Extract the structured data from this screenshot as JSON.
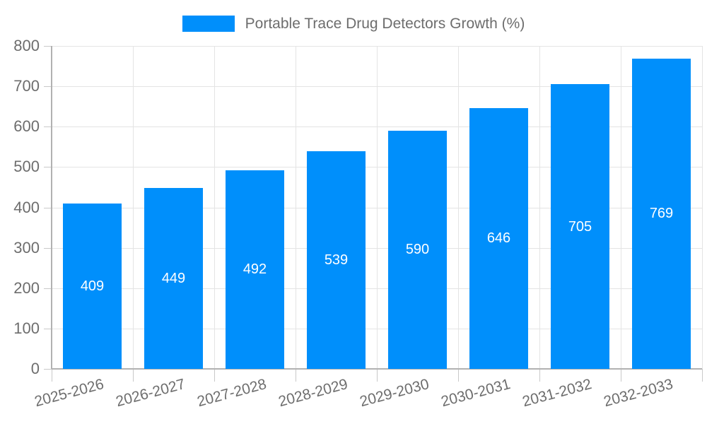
{
  "legend": {
    "label": "Portable Trace Drug Detectors Growth (%)"
  },
  "colors": {
    "bar": "#008FFB",
    "grid": "#e4e4e4",
    "axis": "#b1b1b1",
    "tick": "#c9c9c9",
    "label_text": "#6d6d6d",
    "value_text": "#ffffff",
    "background": "#ffffff"
  },
  "chart_data": {
    "type": "bar",
    "title": "Portable Trace Drug Detectors Growth (%)",
    "categories": [
      "2025-2026",
      "2026-2027",
      "2027-2028",
      "2028-2029",
      "2029-2030",
      "2030-2031",
      "2031-2032",
      "2032-2033"
    ],
    "values": [
      409,
      449,
      492,
      539,
      590,
      646,
      705,
      769
    ],
    "xlabel": "",
    "ylabel": "",
    "ylim": [
      0,
      800
    ],
    "yticks": [
      0,
      100,
      200,
      300,
      400,
      500,
      600,
      700,
      800
    ],
    "grid": true,
    "legend_position": "top",
    "value_labels": "inside-center",
    "x_label_rotation_deg": -15
  }
}
